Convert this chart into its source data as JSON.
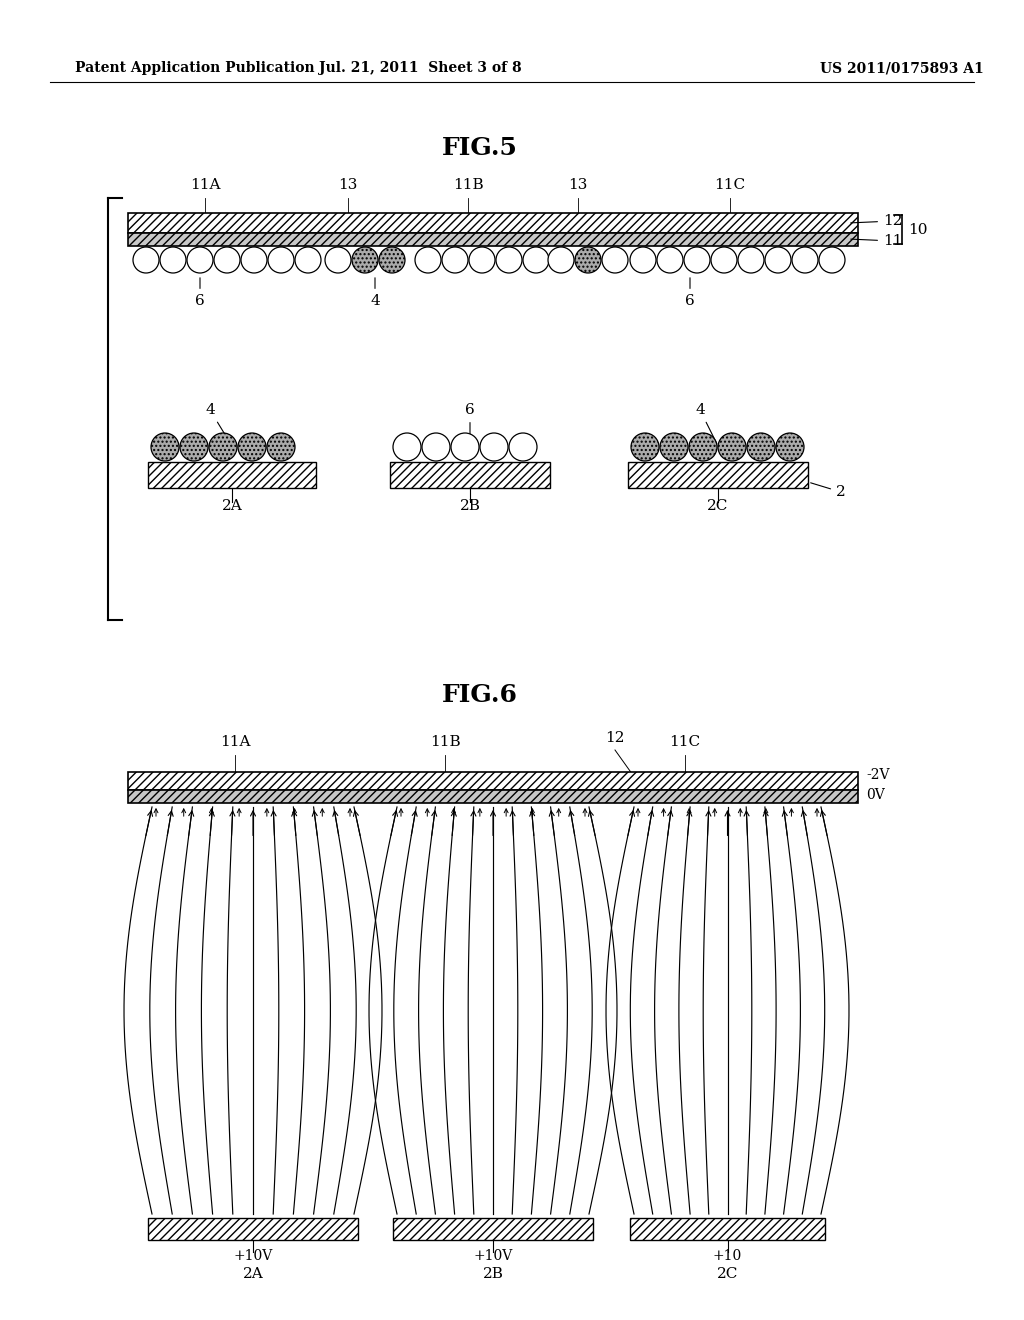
{
  "bg_color": "#ffffff",
  "header_left": "Patent Application Publication",
  "header_mid": "Jul. 21, 2011  Sheet 3 of 8",
  "header_right": "US 2011/0175893 A1",
  "fig5_title": "FIG.5",
  "fig6_title": "FIG.6",
  "fig_width": 1024,
  "fig_height": 1320
}
